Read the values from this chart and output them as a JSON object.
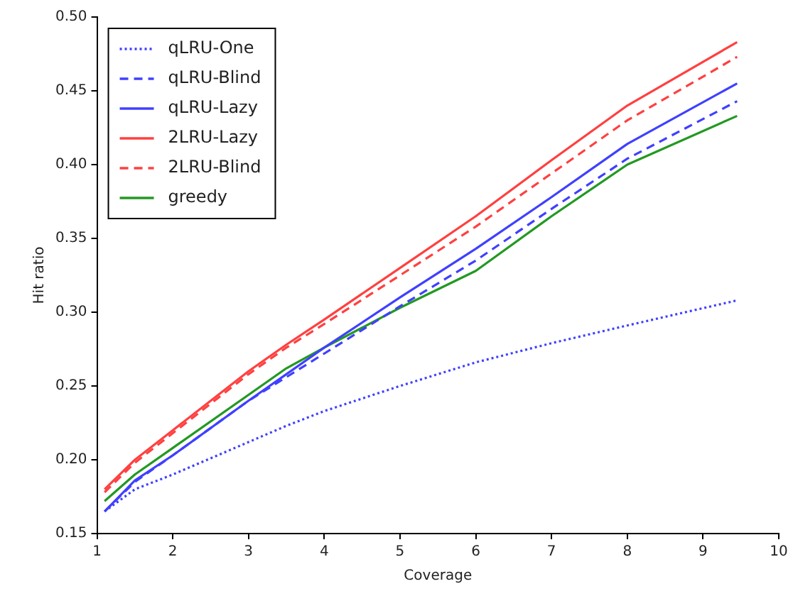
{
  "chart_data": {
    "type": "line",
    "xlabel": "Coverage",
    "ylabel": "Hit ratio",
    "xlim": [
      1,
      10
    ],
    "xticks": [
      1,
      2,
      3,
      4,
      5,
      6,
      7,
      8,
      9,
      10
    ],
    "ylim": [
      0.15,
      0.5
    ],
    "yticks": [
      {
        "value": 0.15,
        "label": "0.15"
      },
      {
        "value": 0.2,
        "label": "0.20"
      },
      {
        "value": 0.25,
        "label": "0.25"
      },
      {
        "value": 0.3,
        "label": "0.30"
      },
      {
        "value": 0.35,
        "label": "0.35"
      },
      {
        "value": 0.4,
        "label": "0.40"
      },
      {
        "value": 0.45,
        "label": "0.45"
      },
      {
        "value": 0.5,
        "label": "0.50"
      }
    ],
    "grid": false,
    "legend": "top left",
    "marker": "none",
    "x": [
      1.1,
      1.5,
      2,
      3,
      3.5,
      4,
      5,
      6,
      7,
      8,
      9.45
    ],
    "series": [
      {
        "name": "qLRU-One",
        "color": "#4040ff",
        "line_style": "dotted",
        "values": [
          0.165,
          0.18,
          0.19,
          0.212,
          0.223,
          0.233,
          0.25,
          0.266,
          0.279,
          0.291,
          0.308
        ]
      },
      {
        "name": "qLRU-Blind",
        "color": "#4040ff",
        "line_style": "dashed",
        "values": [
          0.165,
          0.185,
          0.203,
          0.24,
          0.256,
          0.272,
          0.304,
          0.335,
          0.37,
          0.404,
          0.443
        ]
      },
      {
        "name": "qLRU-Lazy",
        "color": "#4040ff",
        "line_style": "solid",
        "values": [
          0.165,
          0.186,
          0.203,
          0.24,
          0.258,
          0.276,
          0.31,
          0.343,
          0.378,
          0.414,
          0.455
        ]
      },
      {
        "name": "2LRU-Lazy",
        "color": "#ff4040",
        "line_style": "solid",
        "values": [
          0.18,
          0.2,
          0.22,
          0.26,
          0.278,
          0.295,
          0.33,
          0.365,
          0.403,
          0.44,
          0.483
        ]
      },
      {
        "name": "2LRU-Blind",
        "color": "#ff4040",
        "line_style": "dashed",
        "values": [
          0.178,
          0.198,
          0.218,
          0.258,
          0.276,
          0.292,
          0.325,
          0.358,
          0.394,
          0.43,
          0.473
        ]
      },
      {
        "name": "greedy",
        "color": "#229922",
        "line_style": "solid",
        "values": [
          0.172,
          0.19,
          0.208,
          0.244,
          0.262,
          0.276,
          0.303,
          0.328,
          0.365,
          0.4,
          0.433
        ]
      }
    ]
  }
}
